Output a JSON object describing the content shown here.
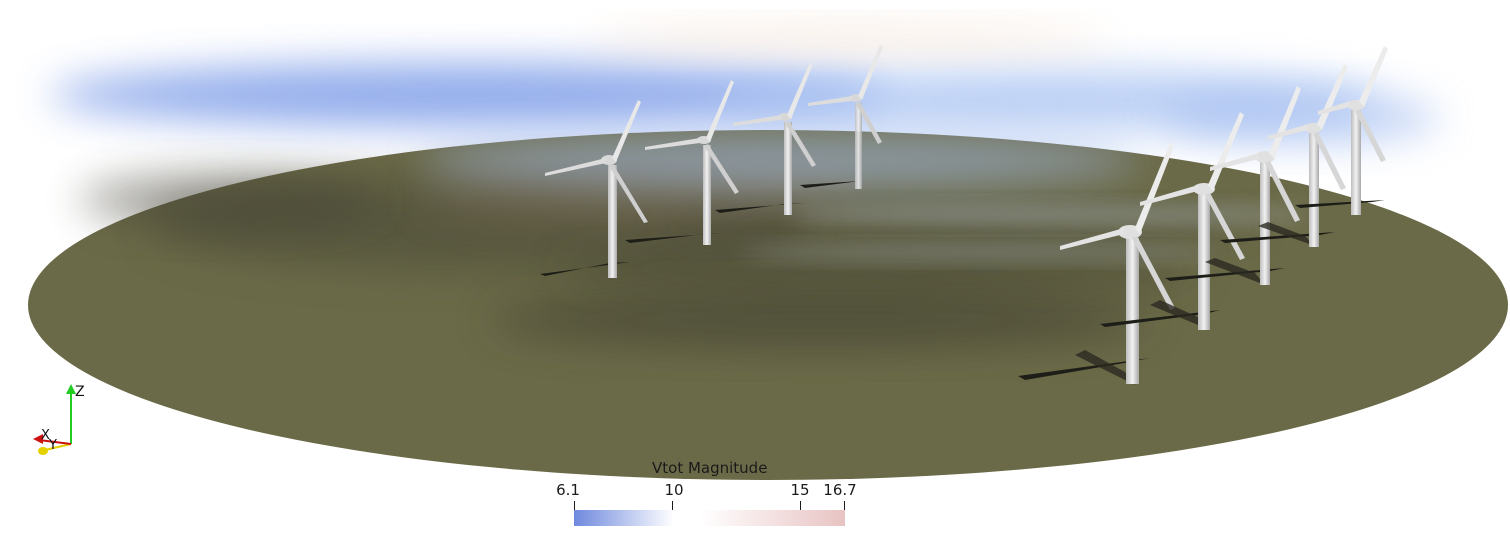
{
  "viewer": {
    "scene_name": "wind-farm-flow-visualization",
    "turbines_far_row": 4,
    "turbines_near_row": 5,
    "ground_color": "#6b6a48",
    "shadow_color": "#3e3d2f"
  },
  "colorbar": {
    "title": "Vtot Magnitude",
    "min": 6.1,
    "max": 16.7,
    "ticks": [
      {
        "label": "6.1",
        "value": 6.1
      },
      {
        "label": "10",
        "value": 10
      },
      {
        "label": "15",
        "value": 15
      },
      {
        "label": "16.7",
        "value": 16.7
      }
    ],
    "colors": {
      "low": "#6f89de",
      "mid": "#ffffff",
      "high": "#e8c3c3"
    }
  },
  "axes": {
    "z_label": "Z",
    "x_label": "X",
    "y_label": "Y",
    "z_color": "#22cc22",
    "x_color": "#cc1111",
    "y_color": "#e5d000"
  }
}
